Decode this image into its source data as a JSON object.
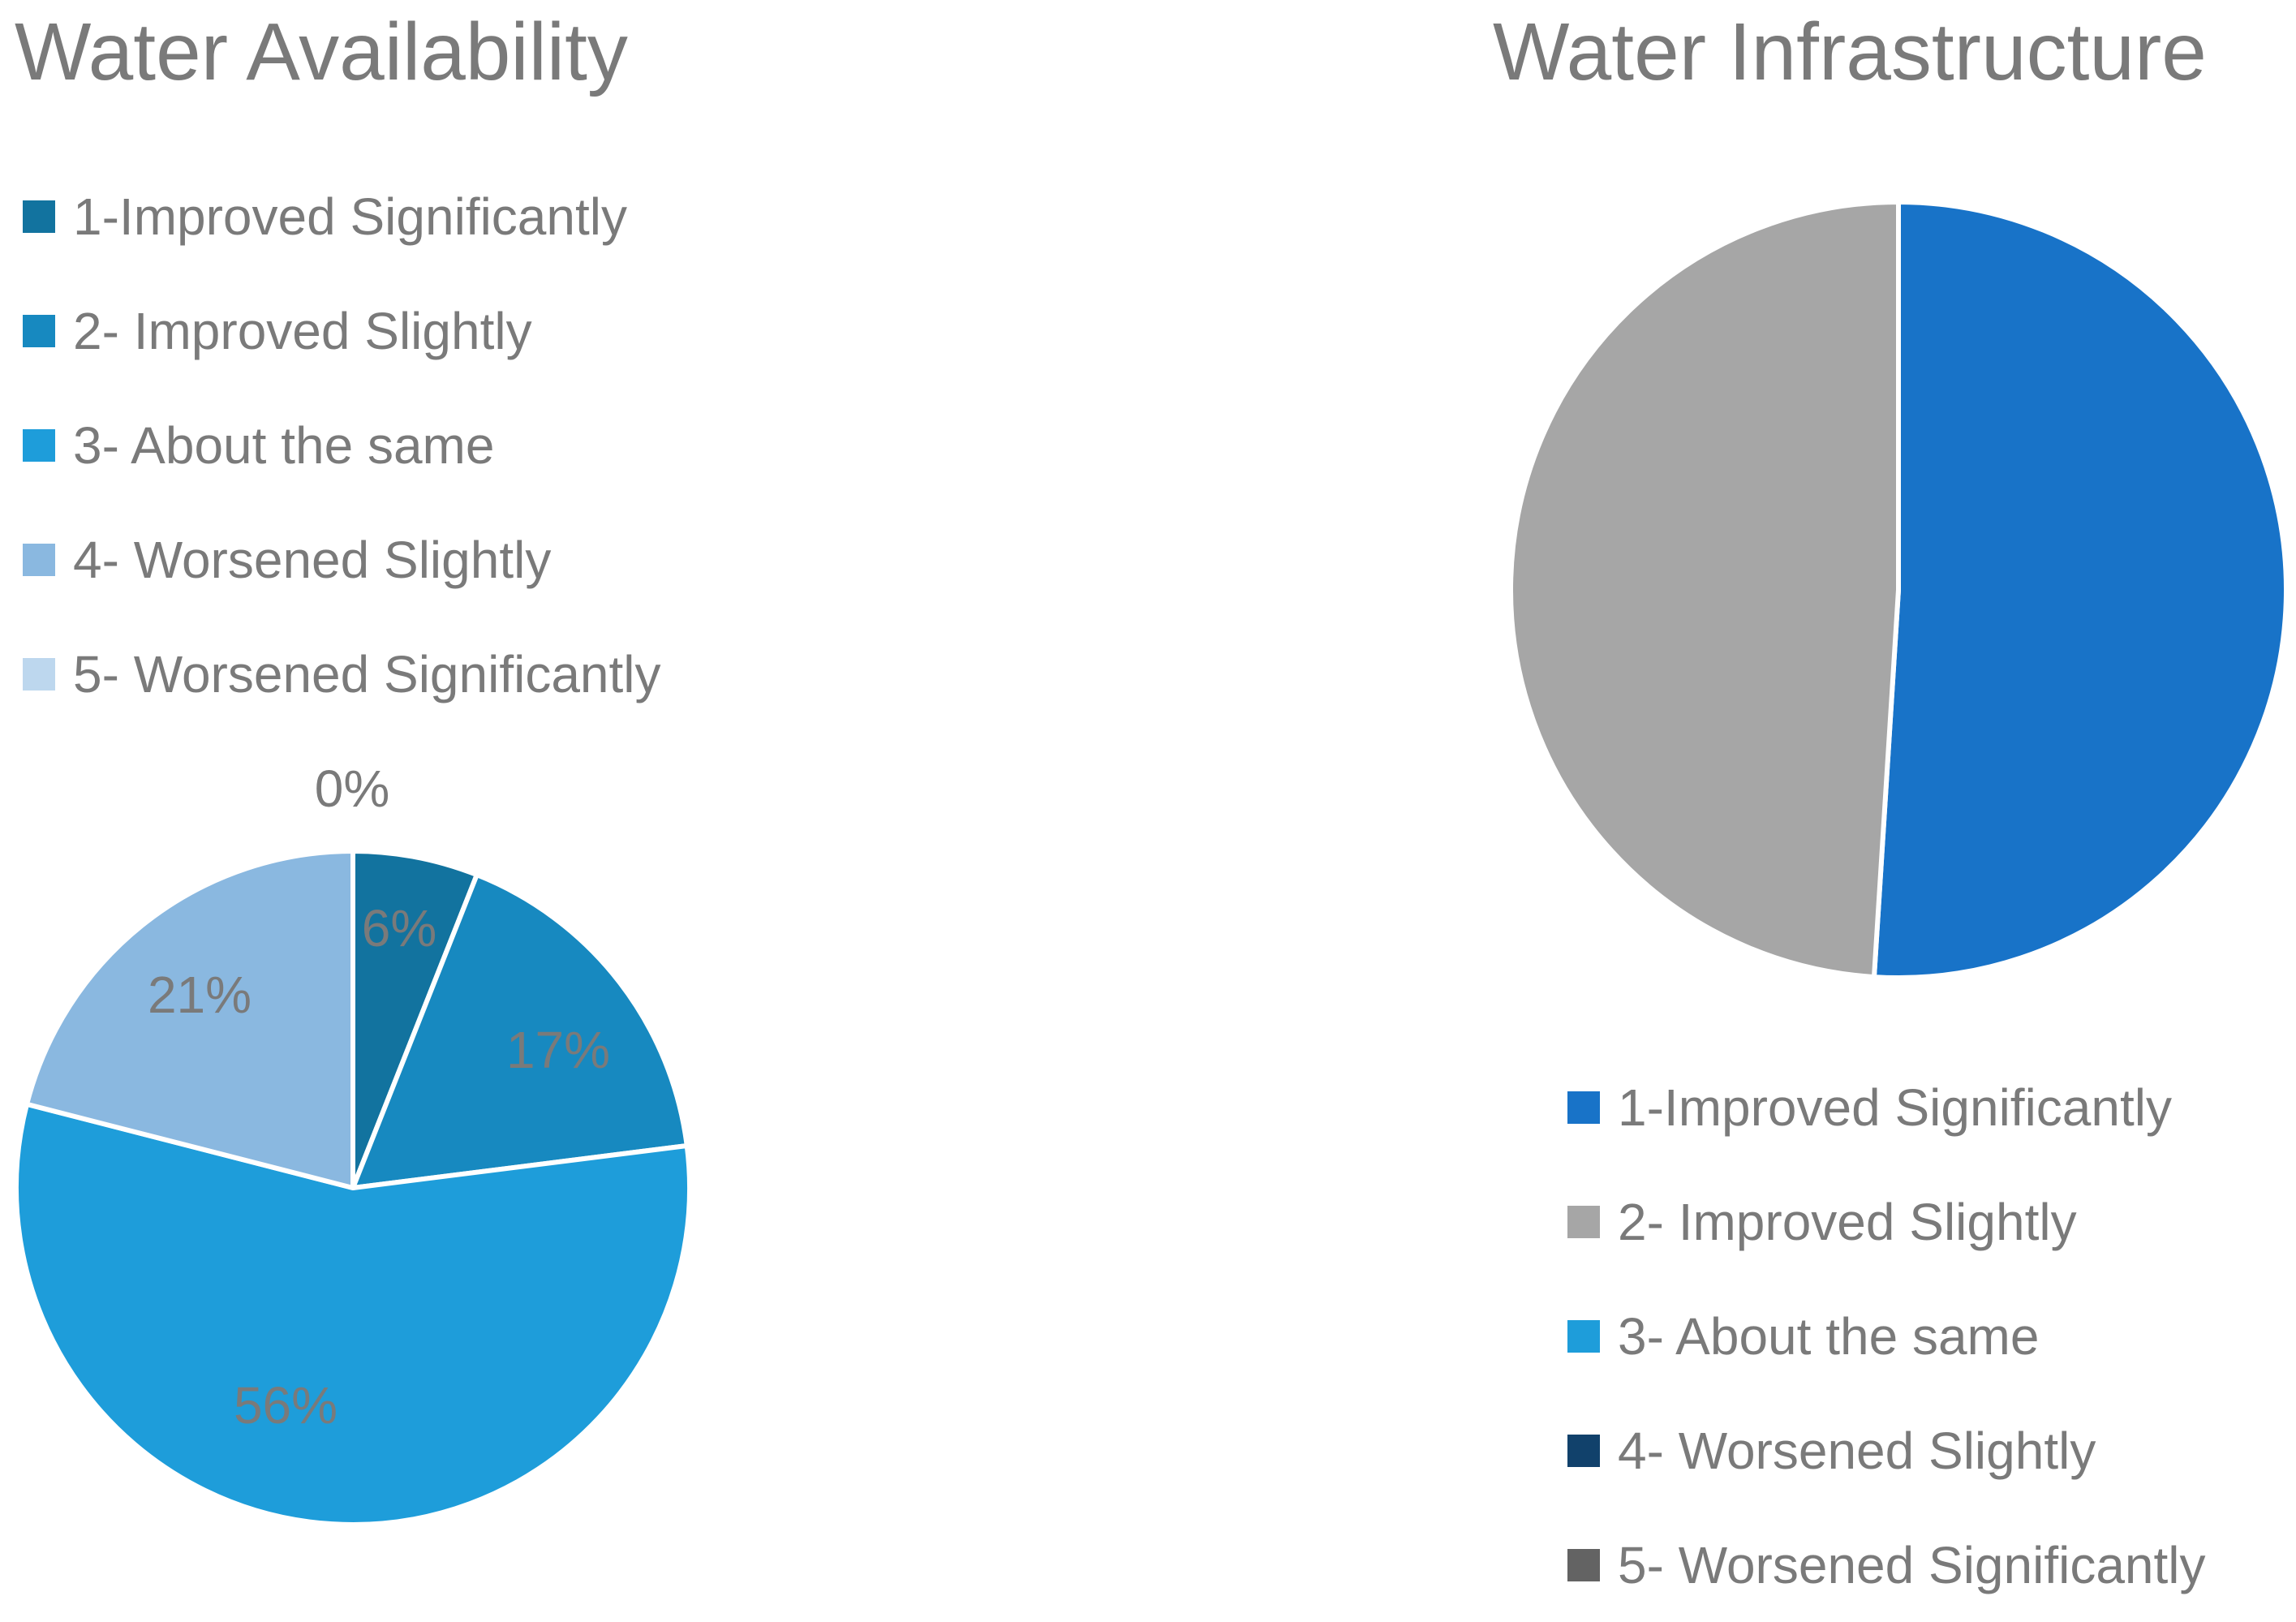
{
  "chart_data": [
    {
      "type": "pie",
      "title": "Water Availability",
      "categories": [
        "1-Improved Significantly",
        "2- Improved Slightly",
        "3- About the same",
        "4- Worsened Slightly",
        "5- Worsened Significantly"
      ],
      "values": [
        6,
        17,
        56,
        21,
        0
      ],
      "value_labels": [
        "6%",
        "17%",
        "56%",
        "21%",
        "0%"
      ],
      "colors": [
        "#12739f",
        "#1789c0",
        "#1e9dda",
        "#8ab8e0",
        "#bdd7ee"
      ],
      "legend_position": "top"
    },
    {
      "type": "pie",
      "title": "Water Infrastructure",
      "categories": [
        "1-Improved Significantly",
        "2- Improved Slightly",
        "3- About the same",
        "4- Worsened Slightly",
        "5- Worsened Significantly"
      ],
      "values": [
        51,
        49,
        0,
        0,
        0
      ],
      "value_labels": [],
      "colors": [
        "#1873c8",
        "#a6a6a6",
        "#1e9dda",
        "#11416b",
        "#636363"
      ],
      "legend_position": "bottom"
    }
  ]
}
